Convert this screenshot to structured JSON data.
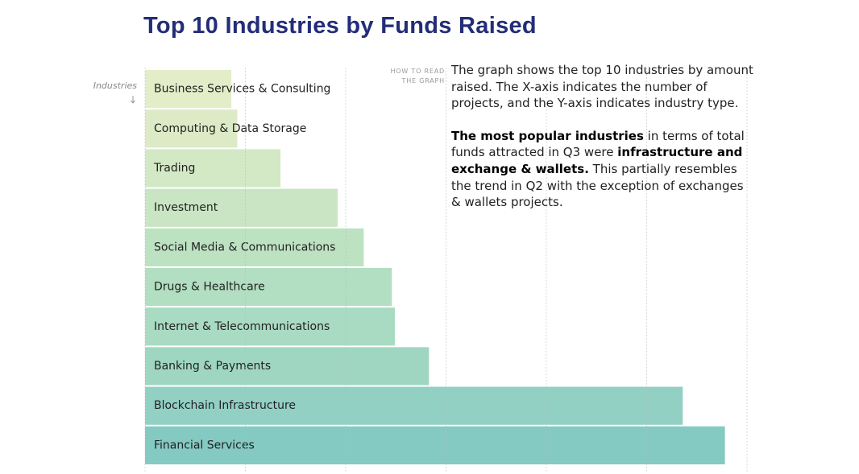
{
  "chart_data": {
    "type": "bar",
    "orientation": "horizontal",
    "title": "Top 10 Industries by Funds Raised",
    "y_axis_label": "Industries",
    "categories": [
      "Business Services & Consulting",
      "Computing & Data Storage",
      "Trading",
      "Investment",
      "Social Media & Communications",
      "Drugs & Healthcare",
      "Internet & Telecommunications",
      "Banking & Payments",
      "Blockchain Infrastructure",
      "Financial Services"
    ],
    "values": [
      0.86,
      0.92,
      1.35,
      1.92,
      2.18,
      2.46,
      2.49,
      2.83,
      5.36,
      5.78
    ],
    "colors": [
      "#e3edc8",
      "#dcebc6",
      "#d3e8c4",
      "#c9e5c3",
      "#bde2c2",
      "#b2dec2",
      "#a9dbc2",
      "#9fd6c2",
      "#92d0c3",
      "#84cac2"
    ],
    "xlim": [
      0,
      6
    ],
    "xticks": [
      0,
      1,
      2,
      3,
      4,
      5,
      6
    ],
    "grid": true,
    "read_label": "HOW TO READ THE GRAPH",
    "annotation": [
      [
        {
          "text": "The graph shows the top 10 industries by amount raised. The X-axis indicates the number of projects, and the Y-axis indicates industry type.",
          "bold": false
        }
      ],
      [
        {
          "text": "The most popular industries",
          "bold": true
        },
        {
          "text": " in terms of total funds attracted in Q3 were ",
          "bold": false
        },
        {
          "text": "infrastructure and exchange & wallets.",
          "bold": true
        },
        {
          "text": " This partially resembles the trend in Q2 with the exception of exchanges & wallets projects.",
          "bold": false
        }
      ]
    ]
  }
}
